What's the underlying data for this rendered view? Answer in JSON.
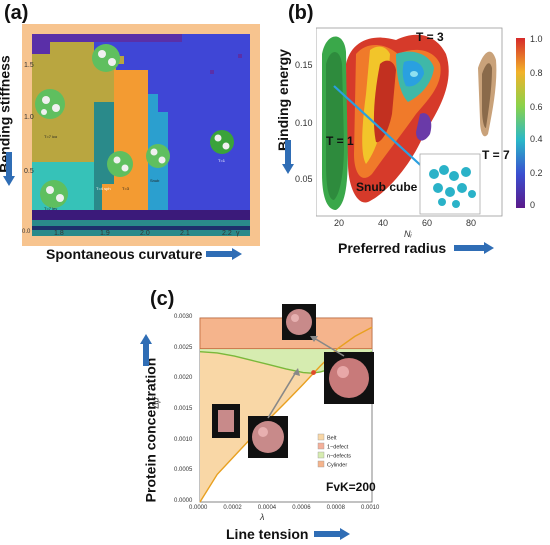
{
  "chart_data": [
    {
      "panel": "(a)",
      "type": "heatmap",
      "xlabel": "Spontaneous curvature",
      "ylabel": "Bending stiffness",
      "x_ticks": [
        "1.8",
        "1.9",
        "2.0",
        "2.1",
        "2.2"
      ],
      "x_tick_prefix": "0.0",
      "x_tick_suffix": "γ",
      "y_ticks": [
        "0.5",
        "1.0",
        "1.5"
      ],
      "regions": [
        "T=7 ico",
        "T=4 sph",
        "T=3",
        "Snub",
        "T=7 lev",
        "T=1"
      ],
      "colors": {
        "t7ico": "#b9a640",
        "t4sph": "#2a8a8a",
        "t3": "#f39b32",
        "snub": "#2b9fcf",
        "t7lev": "#36c2b8",
        "t1": "#3f46d6",
        "frame": "#f7c48f",
        "dark": "#3b1a7a"
      }
    },
    {
      "panel": "(b)",
      "type": "heatmap",
      "xlabel": "Preferred radius",
      "x_subscript_label": "Nᵢ",
      "ylabel": "Binding energy",
      "x_ticks": [
        "20",
        "40",
        "60",
        "80"
      ],
      "y_ticks": [
        "0.05",
        "0.10",
        "0.15"
      ],
      "colorbar_ticks": [
        "0",
        "0.2",
        "0.4",
        "0.6",
        "0.8",
        "1.0"
      ],
      "colorbar_range": [
        0,
        1.0
      ],
      "annotations": [
        "T = 3",
        "T = 1",
        "T = 7",
        "Snub cube"
      ]
    },
    {
      "panel": "(c)",
      "type": "area",
      "xlabel": "Line tension",
      "x_symbol": "λ",
      "ylabel": "Protein concentration",
      "y_symbol": "Δμ̄",
      "xlim": [
        0.0,
        0.001
      ],
      "ylim": [
        0.0,
        0.003
      ],
      "x_ticks": [
        "0.0000",
        "0.0002",
        "0.0004",
        "0.0006",
        "0.0008",
        "0.0010"
      ],
      "y_ticks": [
        "0.0000",
        "0.0005",
        "0.0010",
        "0.0015",
        "0.0020",
        "0.0025",
        "0.0030"
      ],
      "annotation": "FvK=200",
      "series": [
        {
          "name": "Belt",
          "color": "#f9d7a6"
        },
        {
          "name": "1−defect",
          "color": "#f4b09a"
        },
        {
          "name": "n−defects",
          "color": "#d6ecb0"
        },
        {
          "name": "Cylinder",
          "color": "#f5b48c"
        }
      ],
      "boundaries": {
        "belt_lower": {
          "x": [
            0.0,
            0.0001,
            0.0002,
            0.0003,
            0.0004,
            0.0005,
            0.0006,
            0.0007,
            0.0008,
            0.0009,
            0.001
          ],
          "y": [
            0.0,
            0.00045,
            0.00075,
            0.00105,
            0.00135,
            0.00163,
            0.00192,
            0.00222,
            0.0025,
            0.0027,
            0.00285
          ]
        },
        "ndefect_lower": {
          "x": [
            0.0,
            0.0001,
            0.0002,
            0.0003,
            0.0004,
            0.0005,
            0.0006,
            0.00065,
            0.0007,
            0.0008,
            0.0009,
            0.001
          ],
          "y": [
            0.00245,
            0.00243,
            0.00238,
            0.00231,
            0.00224,
            0.00217,
            0.00211,
            0.0021,
            0.00212,
            0.0022,
            0.00232,
            0.00245
          ]
        },
        "cylinder_lower": 0.0025,
        "cylinder_upper": 0.003
      }
    }
  ],
  "labels": {
    "a": "(a)",
    "b": "(b)",
    "c": "(c)"
  }
}
